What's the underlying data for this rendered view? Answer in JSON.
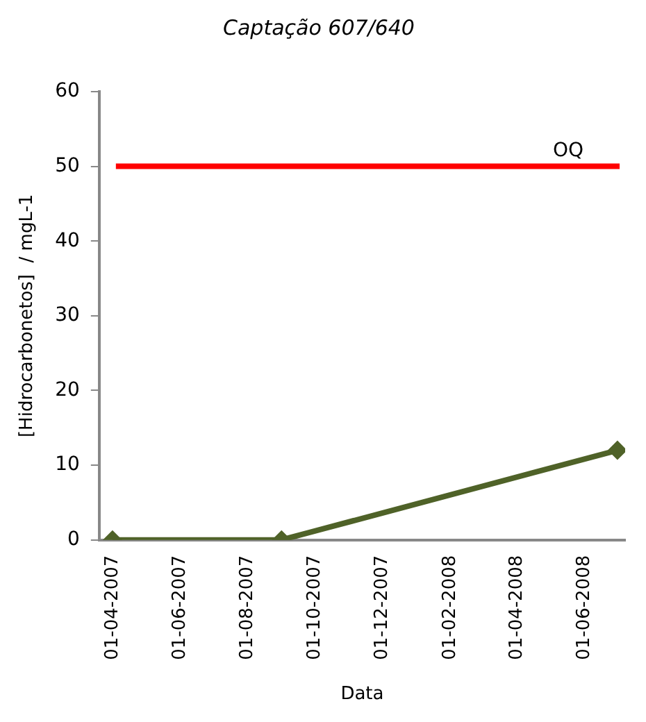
{
  "chart_data": {
    "type": "line",
    "title": "Captação 607/640",
    "xlabel": "Data",
    "ylabel": "[Hidrocarbonetos]  / mgL-1",
    "x": [
      "2007-04-01",
      "2007-09-01",
      "2008-07-01"
    ],
    "series": [
      {
        "color": "#4f6228",
        "values": [
          0,
          0,
          12
        ]
      }
    ],
    "marker": "diamond",
    "line_style": "solid",
    "grid": false,
    "legend": false,
    "xlim": [
      "2007-03-20",
      "2008-07-08"
    ],
    "xticks": [
      {
        "value": "2007-04-01",
        "label": "01-04-2007"
      },
      {
        "value": "2007-06-01",
        "label": "01-06-2007"
      },
      {
        "value": "2007-08-01",
        "label": "01-08-2007"
      },
      {
        "value": "2007-10-01",
        "label": "01-10-2007"
      },
      {
        "value": "2007-12-01",
        "label": "01-12-2007"
      },
      {
        "value": "2008-02-01",
        "label": "01-02-2008"
      },
      {
        "value": "2008-04-01",
        "label": "01-04-2008"
      },
      {
        "value": "2008-06-01",
        "label": "01-06-2008"
      }
    ],
    "ylim": [
      0,
      60
    ],
    "yticks": [
      0,
      10,
      20,
      30,
      40,
      50,
      60
    ],
    "ref_lines": [
      {
        "axis": "y",
        "value": 50,
        "label": "OQ",
        "color": "#ff0000",
        "line_style": "solid"
      }
    ]
  }
}
